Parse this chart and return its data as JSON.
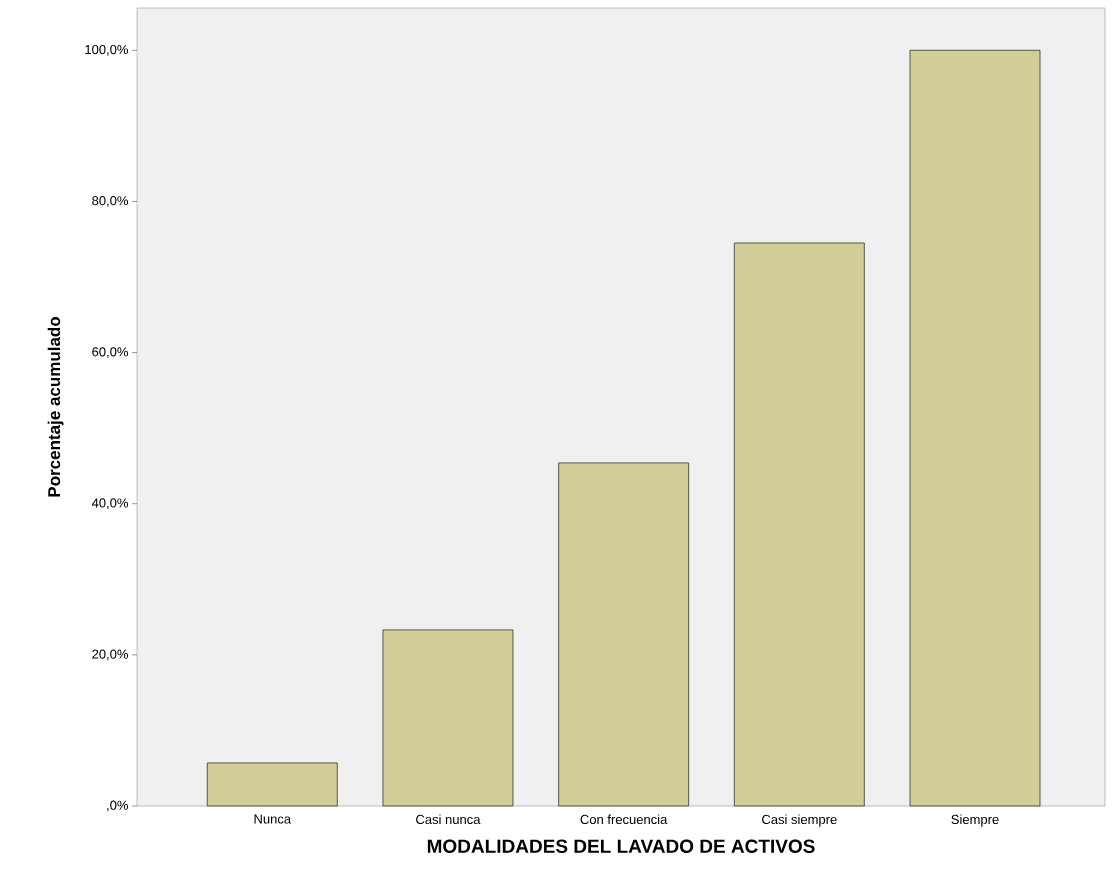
{
  "chart_data": {
    "type": "bar",
    "xlabel": "MODALIDADES DEL LAVADO DE ACTIVOS",
    "ylabel": "Porcentaje acumulado",
    "categories": [
      "Nunca",
      "Casi nunca",
      "Con frecuencia",
      "Casi siempre",
      "Siempre"
    ],
    "values": [
      5.7,
      23.3,
      45.4,
      74.5,
      100
    ],
    "color": "#d3ce97",
    "ylim": [
      0,
      105.6
    ],
    "yticks": [
      {
        "value": 0,
        "label": ",0%"
      },
      {
        "value": 20,
        "label": "20,0%"
      },
      {
        "value": 40,
        "label": "40,0%"
      },
      {
        "value": 60,
        "label": "60,0%"
      },
      {
        "value": 80,
        "label": "80,0%"
      },
      {
        "value": 100,
        "label": "100,0%"
      }
    ],
    "grid": false
  }
}
